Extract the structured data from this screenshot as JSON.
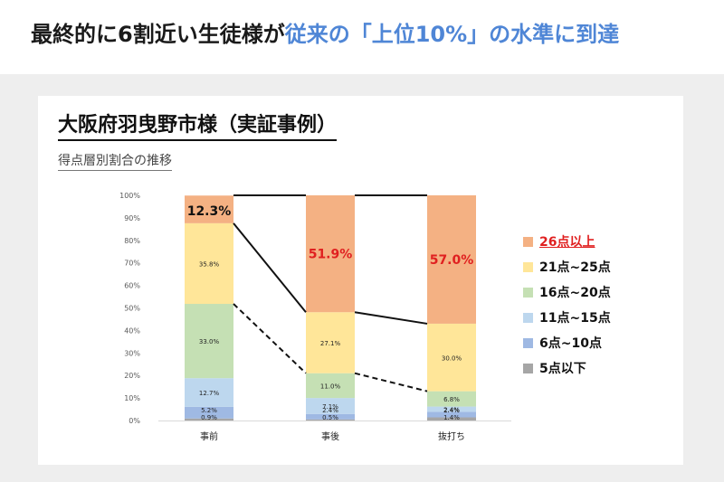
{
  "headline": {
    "part1": "最終的に6割近い生徒様が",
    "part2": "従来の「上位10%」の水準に到達"
  },
  "chart_data": {
    "type": "bar",
    "stacked": true,
    "title": "大阪府羽曳野市様（実証事例）",
    "subtitle": "得点層別割合の推移",
    "categories": [
      "事前",
      "事後",
      "抜打ち"
    ],
    "ylim": [
      0,
      100
    ],
    "y_ticks": [
      "0%",
      "10%",
      "20%",
      "30%",
      "40%",
      "50%",
      "60%",
      "70%",
      "80%",
      "90%",
      "100%"
    ],
    "series": [
      {
        "name": "5点以下",
        "color": "#a6a6a6",
        "values": [
          0.9,
          0.5,
          1.4
        ],
        "labels": [
          "0.9%",
          "0.5%",
          "1.4%"
        ]
      },
      {
        "name": "6点~10点",
        "color": "#9fb9e3",
        "values": [
          5.2,
          2.4,
          2.4
        ],
        "labels": [
          "5.2%",
          "2.4%",
          "2.4%"
        ]
      },
      {
        "name": "11点~15点",
        "color": "#bdd7ee",
        "values": [
          12.7,
          7.1,
          2.4
        ],
        "labels": [
          "12.7%",
          "7.1%",
          "2.4%"
        ]
      },
      {
        "name": "16点~20点",
        "color": "#c5e0b4",
        "values": [
          33.0,
          11.0,
          6.8
        ],
        "labels": [
          "33.0%",
          "11.0%",
          "6.8%"
        ]
      },
      {
        "name": "21点~25点",
        "color": "#ffe699",
        "values": [
          35.8,
          27.1,
          30.0
        ],
        "labels": [
          "35.8%",
          "27.1%",
          "30.0%"
        ]
      },
      {
        "name": "26点以上",
        "color": "#f4b183",
        "values": [
          12.3,
          51.9,
          57.0
        ],
        "labels": [
          "12.3%",
          "51.9%",
          "57.0%"
        ]
      }
    ],
    "highlight_series": "26点以上",
    "legend_position": "right",
    "grid": false
  }
}
